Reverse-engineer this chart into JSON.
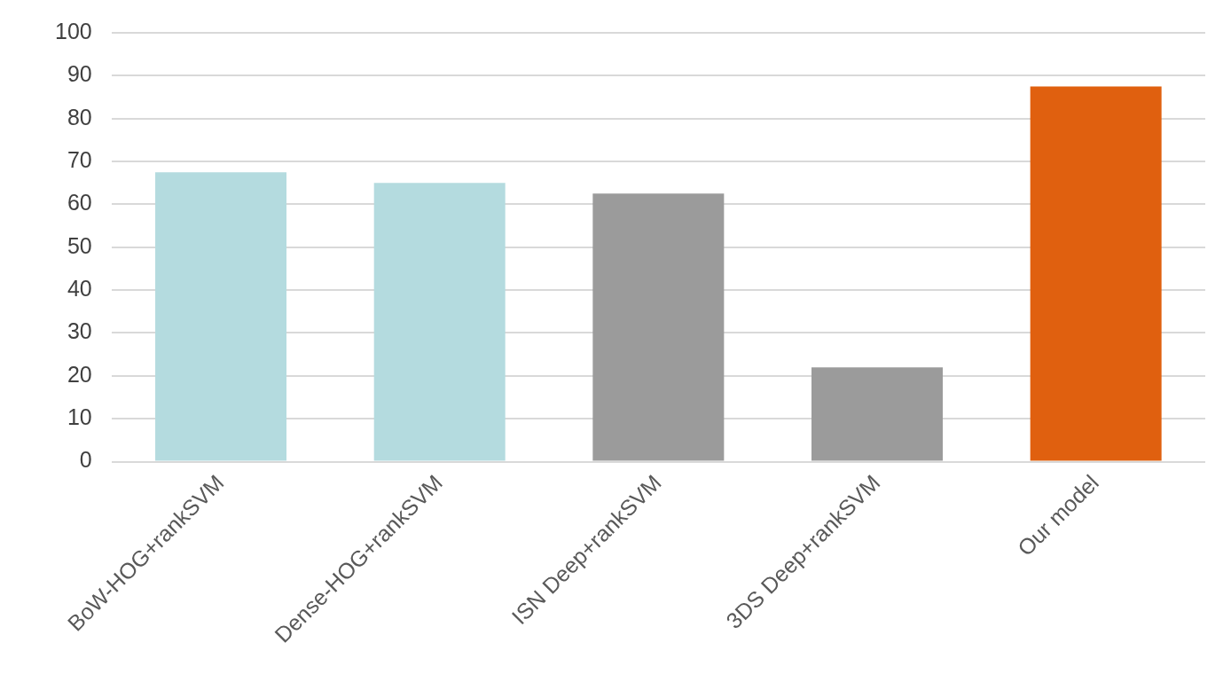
{
  "chart_data": {
    "type": "bar",
    "categories": [
      "BoW-HOG+rankSVM",
      "Dense-HOG+rankSVM",
      "ISN Deep+rankSVM",
      "3DS Deep+rankSVM",
      "Our model"
    ],
    "values": [
      67.5,
      65,
      62.5,
      22,
      87.5
    ],
    "colors": [
      "#b4dbdf",
      "#b4dbdf",
      "#9b9b9b",
      "#9b9b9b",
      "#e0600f"
    ],
    "ylim": [
      0,
      100
    ],
    "yticks": [
      0,
      10,
      20,
      30,
      40,
      50,
      60,
      70,
      80,
      90,
      100
    ],
    "grid": "y",
    "legend": false
  }
}
